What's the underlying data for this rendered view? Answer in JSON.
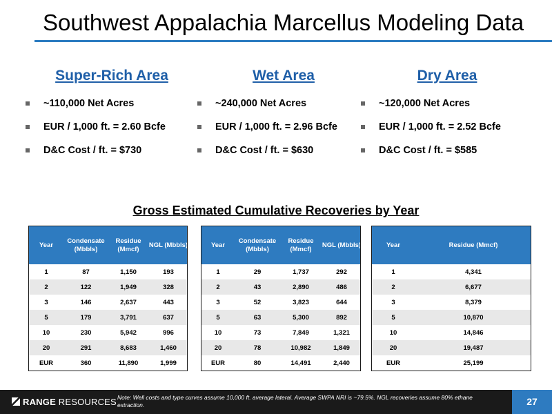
{
  "title": "Southwest Appalachia Marcellus Modeling Data",
  "areas": [
    {
      "heading": "Super-Rich Area",
      "bullets": [
        "~110,000 Net Acres",
        "EUR / 1,000 ft. = 2.60 Bcfe",
        "D&C Cost / ft. = $730"
      ]
    },
    {
      "heading": "Wet Area",
      "bullets": [
        "~240,000 Net Acres",
        "EUR / 1,000 ft. = 2.96 Bcfe",
        "D&C Cost / ft. = $630"
      ]
    },
    {
      "heading": "Dry Area",
      "bullets": [
        "~120,000 Net Acres",
        "EUR / 1,000 ft. = 2.52 Bcfe",
        "D&C Cost / ft. = $585"
      ]
    }
  ],
  "section_title": "Gross Estimated Cumulative Recoveries by Year",
  "tables": [
    {
      "headers": [
        "Year",
        "Condensate (Mbbls)",
        "Residue (Mmcf)",
        "NGL (Mbbls)"
      ],
      "rows": [
        [
          "1",
          "87",
          "1,150",
          "193"
        ],
        [
          "2",
          "122",
          "1,949",
          "328"
        ],
        [
          "3",
          "146",
          "2,637",
          "443"
        ],
        [
          "5",
          "179",
          "3,791",
          "637"
        ],
        [
          "10",
          "230",
          "5,942",
          "996"
        ],
        [
          "20",
          "291",
          "8,683",
          "1,460"
        ],
        [
          "EUR",
          "360",
          "11,890",
          "1,999"
        ]
      ]
    },
    {
      "headers": [
        "Year",
        "Condensate (Mbbls)",
        "Residue (Mmcf)",
        "NGL (Mbbls)"
      ],
      "rows": [
        [
          "1",
          "29",
          "1,737",
          "292"
        ],
        [
          "2",
          "43",
          "2,890",
          "486"
        ],
        [
          "3",
          "52",
          "3,823",
          "644"
        ],
        [
          "5",
          "63",
          "5,300",
          "892"
        ],
        [
          "10",
          "73",
          "7,849",
          "1,321"
        ],
        [
          "20",
          "78",
          "10,982",
          "1,849"
        ],
        [
          "EUR",
          "80",
          "14,491",
          "2,440"
        ]
      ]
    },
    {
      "headers": [
        "Year",
        "Residue (Mmcf)"
      ],
      "rows": [
        [
          "1",
          "4,341"
        ],
        [
          "2",
          "6,677"
        ],
        [
          "3",
          "8,379"
        ],
        [
          "5",
          "10,870"
        ],
        [
          "10",
          "14,846"
        ],
        [
          "20",
          "19,487"
        ],
        [
          "EUR",
          "25,199"
        ]
      ]
    }
  ],
  "footer": {
    "logo_bold": "RANGE",
    "logo_light": " RESOURCES",
    "note": "Note: Well costs and type curves assume 10,000 ft. average lateral. Average SWPA NRI is ~79.5%. NGL recoveries assume 80% ethane extraction.",
    "page_number": "27"
  }
}
